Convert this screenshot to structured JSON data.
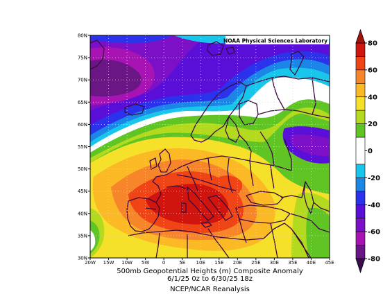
{
  "credit": "NOAA Physical Sciences Laboratory",
  "caption": {
    "line1": "500mb Geopotential Heights (m)   Composite Anomaly",
    "line2": "6/1/25 0z  to 6/30/25 18z",
    "line3": "NCEP/NCAR Reanalysis"
  },
  "map": {
    "lon_labels": [
      "20W",
      "15W",
      "10W",
      "5W",
      "0",
      "5E",
      "10E",
      "15E",
      "20E",
      "25E",
      "30E",
      "35E",
      "40E",
      "45E"
    ],
    "lat_labels": [
      "30N",
      "35N",
      "40N",
      "45N",
      "50N",
      "55N",
      "60N",
      "65N",
      "70N",
      "75N",
      "80N"
    ],
    "lon_range": [
      -20,
      45
    ],
    "lat_range": [
      30,
      80
    ],
    "grid": "dotted",
    "coastlines": "dark purple"
  },
  "colorbar": {
    "tick_labels": [
      "80",
      "60",
      "40",
      "20",
      "0",
      "-20",
      "-40",
      "-60",
      "-80"
    ],
    "levels": [
      80,
      60,
      40,
      20,
      0,
      -20,
      -40,
      -60,
      -80
    ],
    "bins": [
      {
        "from": 80,
        "to": 70,
        "color": "#d0140e"
      },
      {
        "from": 70,
        "to": 60,
        "color": "#ef4416"
      },
      {
        "from": 60,
        "to": 50,
        "color": "#f7862b"
      },
      {
        "from": 50,
        "to": 40,
        "color": "#fbb925"
      },
      {
        "from": 40,
        "to": 30,
        "color": "#f6e12a"
      },
      {
        "from": 30,
        "to": 20,
        "color": "#b4da20"
      },
      {
        "from": 20,
        "to": 10,
        "color": "#5fc424"
      },
      {
        "from": 10,
        "to": -10,
        "color": "#ffffff"
      },
      {
        "from": -10,
        "to": -20,
        "color": "#19c6eb"
      },
      {
        "from": -20,
        "to": -30,
        "color": "#1c86e6"
      },
      {
        "from": -30,
        "to": -40,
        "color": "#2c32ec"
      },
      {
        "from": -40,
        "to": -50,
        "color": "#5a0fd8"
      },
      {
        "from": -50,
        "to": -60,
        "color": "#7c10c6"
      },
      {
        "from": -60,
        "to": -70,
        "color": "#a814b4"
      },
      {
        "from": -70,
        "to": -80,
        "color": "#6a1684"
      }
    ],
    "extend_max_color": "#a3120c",
    "extend_min_color": "#3c0c4c"
  }
}
